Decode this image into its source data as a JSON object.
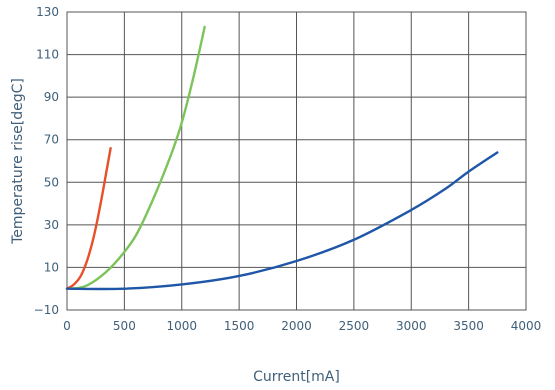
{
  "chart_data": {
    "type": "line",
    "title": "",
    "xlabel": "Current[mA]",
    "ylabel": "Temperature rise[degC]",
    "xlim": [
      0,
      4000
    ],
    "ylim": [
      -10,
      130
    ],
    "x_ticks": [
      0,
      500,
      1000,
      1500,
      2000,
      2500,
      3000,
      3500,
      4000
    ],
    "y_ticks": [
      -10,
      10,
      30,
      50,
      70,
      90,
      110,
      130
    ],
    "x_tick_labels": [
      "0",
      "500",
      "1000",
      "1500",
      "2000",
      "2500",
      "3000",
      "3500",
      "4000"
    ],
    "y_tick_labels": [
      "−10",
      "10",
      "30",
      "50",
      "70",
      "90",
      "110",
      "130"
    ],
    "grid": true,
    "legend": "none",
    "series": [
      {
        "color": "#e8502a",
        "points": [
          [
            0,
            0
          ],
          [
            60,
            2
          ],
          [
            120,
            6
          ],
          [
            180,
            14
          ],
          [
            240,
            26
          ],
          [
            300,
            42
          ],
          [
            350,
            57
          ],
          [
            380,
            66
          ]
        ]
      },
      {
        "color": "#7cc35a",
        "points": [
          [
            0,
            0
          ],
          [
            150,
            1
          ],
          [
            300,
            6
          ],
          [
            450,
            14
          ],
          [
            600,
            25
          ],
          [
            750,
            42
          ],
          [
            900,
            62
          ],
          [
            1000,
            78
          ],
          [
            1100,
            99
          ],
          [
            1200,
            123
          ]
        ]
      },
      {
        "color": "#1f56a8",
        "points": [
          [
            0,
            0
          ],
          [
            500,
            0
          ],
          [
            1000,
            2
          ],
          [
            1500,
            6
          ],
          [
            2000,
            13
          ],
          [
            2500,
            23
          ],
          [
            3000,
            37
          ],
          [
            3300,
            47
          ],
          [
            3500,
            55
          ],
          [
            3750,
            64
          ]
        ]
      }
    ]
  }
}
